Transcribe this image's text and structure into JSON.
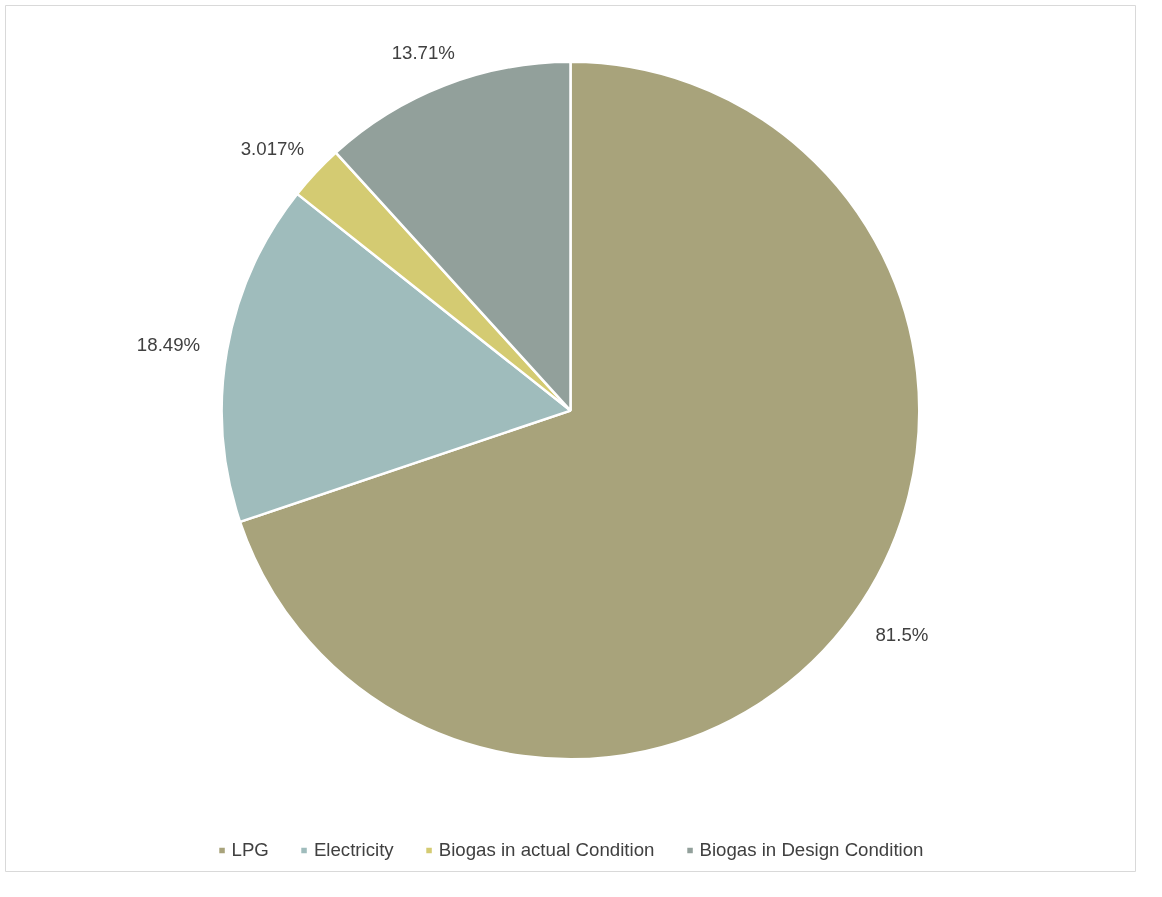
{
  "chart_data": {
    "type": "pie",
    "categories": [
      "LPG",
      "Electricity",
      "Biogas in actual Condition",
      "Biogas in Design Condition"
    ],
    "values": [
      81.5,
      18.49,
      3.017,
      13.71
    ],
    "value_labels": [
      "81.5%",
      "18.49%",
      "3.017%",
      "13.71%"
    ],
    "colors": [
      "#a8a37b",
      "#9fbcbc",
      "#d4cb72",
      "#92a09b"
    ],
    "legend": "bottom"
  }
}
